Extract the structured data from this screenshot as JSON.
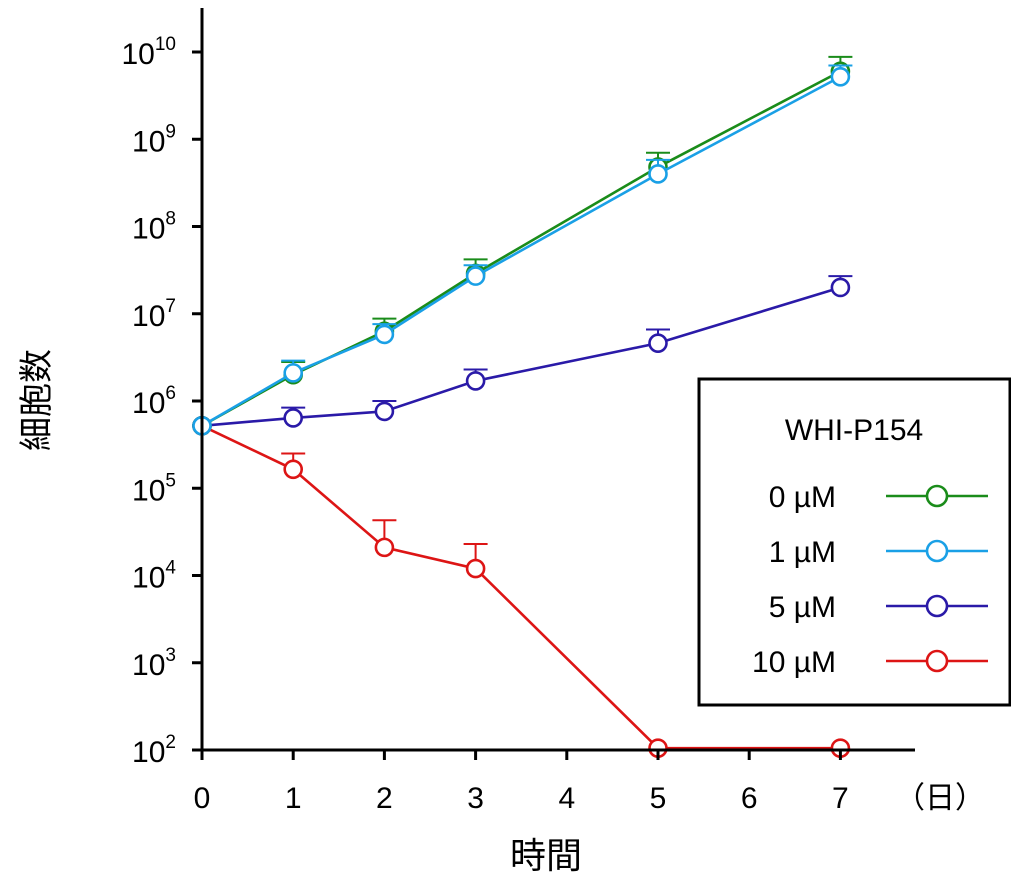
{
  "chart_data": {
    "type": "line",
    "xlabel": "時間",
    "ylabel": "細胞数",
    "x_unit_label": "（日）",
    "yscale": "log",
    "ylim": [
      100,
      10000000000
    ],
    "xlim": [
      0,
      7
    ],
    "x_ticks": [
      "0",
      "1",
      "2",
      "3",
      "4",
      "5",
      "6",
      "7"
    ],
    "y_ticks": [
      {
        "base": "10",
        "exp": "2"
      },
      {
        "base": "10",
        "exp": "3"
      },
      {
        "base": "10",
        "exp": "4"
      },
      {
        "base": "10",
        "exp": "5"
      },
      {
        "base": "10",
        "exp": "6"
      },
      {
        "base": "10",
        "exp": "7"
      },
      {
        "base": "10",
        "exp": "8"
      },
      {
        "base": "10",
        "exp": "9"
      },
      {
        "base": "10",
        "exp": "10"
      }
    ],
    "legend": {
      "title": "WHI-P154",
      "position": "right"
    },
    "series": [
      {
        "name": "0 µM",
        "color": "#1a8c1a",
        "x": [
          0,
          1,
          2,
          3,
          5,
          7
        ],
        "y": [
          520000,
          2000000,
          6300000,
          29000000,
          480000000,
          6000000000
        ],
        "err": [
          0,
          2800000,
          8800000,
          42000000,
          700000000,
          8800000000
        ]
      },
      {
        "name": "1 µM",
        "color": "#1aa0e6",
        "x": [
          0,
          1,
          2,
          3,
          5,
          7
        ],
        "y": [
          520000,
          2100000,
          5800000,
          27000000,
          400000000,
          5200000000
        ],
        "err": [
          0,
          2900000,
          7600000,
          36000000,
          580000000,
          7000000000
        ]
      },
      {
        "name": "5 µM",
        "color": "#2a1aa8",
        "x": [
          0,
          1,
          2,
          3,
          5,
          7
        ],
        "y": [
          520000,
          640000,
          760000,
          1700000,
          4600000,
          20000000
        ],
        "err": [
          0,
          840000,
          1000000,
          2300000,
          6600000,
          27000000
        ]
      },
      {
        "name": "10 µM",
        "color": "#dd1515",
        "x": [
          0,
          1,
          2,
          3,
          5,
          7
        ],
        "y": [
          520000,
          165000,
          21000,
          12000,
          105,
          105
        ],
        "err": [
          0,
          250000,
          43000,
          23000,
          0,
          0
        ]
      }
    ]
  }
}
